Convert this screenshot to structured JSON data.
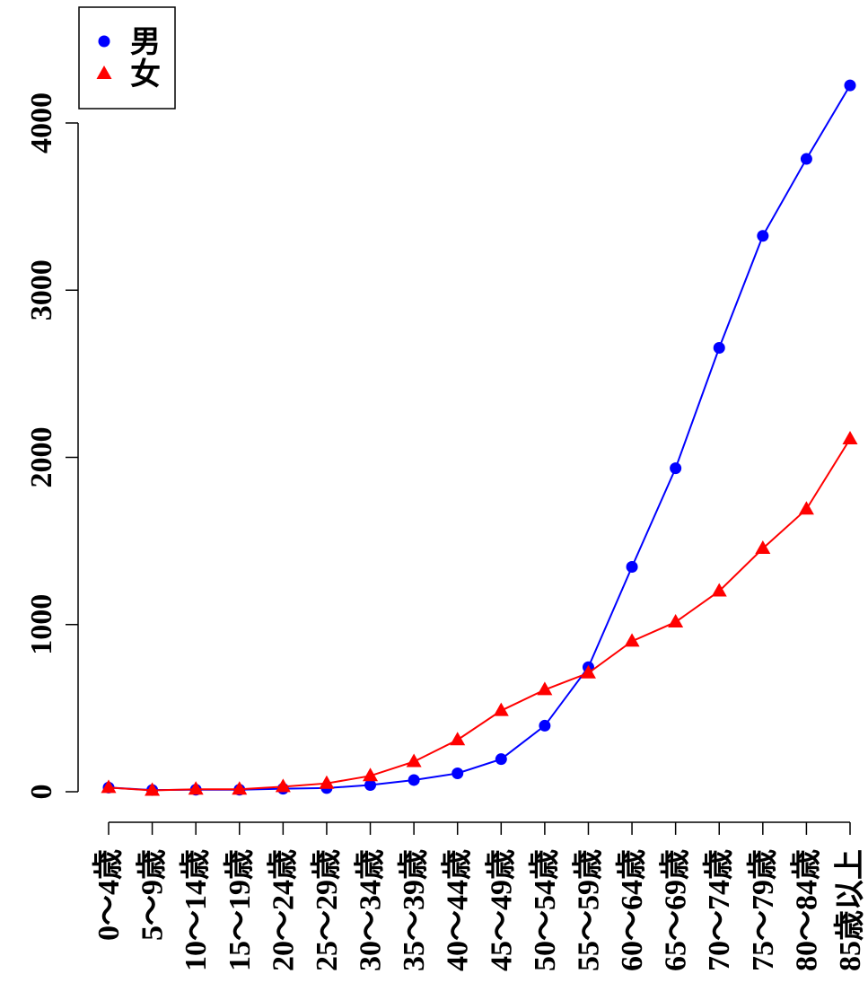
{
  "chart_data": {
    "type": "line",
    "categories": [
      "0〜4歳",
      "5〜9歳",
      "10〜14歳",
      "15〜19歳",
      "20〜24歳",
      "25〜29歳",
      "30〜34歳",
      "35〜39歳",
      "40〜44歳",
      "45〜49歳",
      "50〜54歳",
      "55〜59歳",
      "60〜64歳",
      "65〜69歳",
      "70〜74歳",
      "75〜79歳",
      "80〜84歳",
      "85歳以上"
    ],
    "series": [
      {
        "name": "男",
        "color": "#0000ff",
        "marker": "circle",
        "values": [
          25,
          10,
          12,
          12,
          18,
          22,
          40,
          70,
          110,
          195,
          395,
          745,
          1345,
          1935,
          2655,
          3325,
          3785,
          4225
        ]
      },
      {
        "name": "女",
        "color": "#ff0000",
        "marker": "triangle",
        "values": [
          25,
          8,
          15,
          15,
          30,
          50,
          95,
          180,
          310,
          485,
          610,
          710,
          900,
          1015,
          1200,
          1455,
          1690,
          2110
        ]
      }
    ],
    "yticks": [
      0,
      1000,
      2000,
      3000,
      4000
    ],
    "ylim": [
      0,
      4225
    ],
    "title": "",
    "xlabel": "",
    "ylabel": "",
    "legend_position": "top-left",
    "grid": false
  }
}
